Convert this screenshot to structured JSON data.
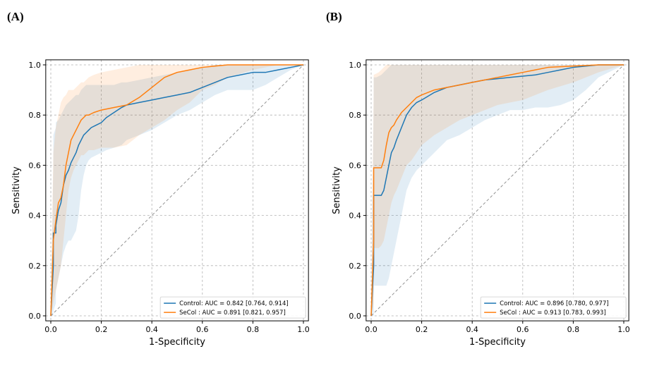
{
  "chart_data": [
    {
      "panel_label": "(A)",
      "type": "line",
      "xlabel": "1-Specificity",
      "ylabel": "Sensitivity",
      "xlim": [
        0,
        1
      ],
      "ylim": [
        0,
        1
      ],
      "xticks": [
        "0.0",
        "0.2",
        "0.4",
        "0.6",
        "0.8",
        "1.0"
      ],
      "yticks": [
        "0.0",
        "0.2",
        "0.4",
        "0.6",
        "0.8",
        "1.0"
      ],
      "grid": true,
      "legend_position": "lower-right",
      "diagonal_reference": true,
      "series": [
        {
          "name": "Control: AUC = 0.842 [0.764, 0.914]",
          "color": "#1f77b4",
          "x": [
            0,
            0.01,
            0.01,
            0.02,
            0.02,
            0.03,
            0.04,
            0.05,
            0.06,
            0.07,
            0.08,
            0.09,
            0.1,
            0.11,
            0.12,
            0.13,
            0.14,
            0.15,
            0.16,
            0.18,
            0.2,
            0.22,
            0.25,
            0.28,
            0.3,
            0.35,
            0.4,
            0.45,
            0.5,
            0.55,
            0.6,
            0.65,
            0.7,
            0.75,
            0.8,
            0.85,
            0.9,
            0.95,
            1.0
          ],
          "y": [
            0,
            0.2,
            0.33,
            0.33,
            0.36,
            0.42,
            0.45,
            0.52,
            0.56,
            0.58,
            0.61,
            0.63,
            0.65,
            0.68,
            0.7,
            0.72,
            0.73,
            0.74,
            0.75,
            0.76,
            0.77,
            0.79,
            0.81,
            0.83,
            0.84,
            0.85,
            0.86,
            0.87,
            0.88,
            0.89,
            0.91,
            0.93,
            0.95,
            0.96,
            0.97,
            0.97,
            0.98,
            0.99,
            1.0
          ],
          "ci_lower": [
            0,
            0,
            0.02,
            0.05,
            0.1,
            0.15,
            0.2,
            0.25,
            0.28,
            0.3,
            0.3,
            0.32,
            0.34,
            0.4,
            0.5,
            0.56,
            0.6,
            0.62,
            0.63,
            0.64,
            0.65,
            0.66,
            0.67,
            0.68,
            0.7,
            0.72,
            0.74,
            0.77,
            0.8,
            0.82,
            0.85,
            0.88,
            0.9,
            0.9,
            0.9,
            0.92,
            0.95,
            0.98,
            1.0
          ],
          "ci_upper": [
            0,
            0.6,
            0.72,
            0.75,
            0.77,
            0.78,
            0.8,
            0.82,
            0.84,
            0.85,
            0.86,
            0.87,
            0.88,
            0.88,
            0.9,
            0.91,
            0.92,
            0.92,
            0.92,
            0.92,
            0.92,
            0.92,
            0.92,
            0.93,
            0.93,
            0.94,
            0.95,
            0.96,
            0.97,
            0.98,
            0.99,
            1.0,
            1.0,
            1.0,
            1.0,
            1.0,
            1.0,
            1.0,
            1.0
          ]
        },
        {
          "name": "SeCol  : AUC = 0.891 [0.821, 0.957]",
          "color": "#ff7f0e",
          "x": [
            0,
            0.01,
            0.02,
            0.03,
            0.04,
            0.05,
            0.06,
            0.07,
            0.08,
            0.09,
            0.1,
            0.11,
            0.12,
            0.13,
            0.14,
            0.15,
            0.17,
            0.2,
            0.25,
            0.3,
            0.35,
            0.4,
            0.45,
            0.5,
            0.55,
            0.6,
            0.65,
            0.7,
            0.8,
            0.9,
            1.0
          ],
          "y": [
            0,
            0.3,
            0.38,
            0.45,
            0.47,
            0.52,
            0.6,
            0.65,
            0.7,
            0.72,
            0.74,
            0.76,
            0.78,
            0.79,
            0.8,
            0.8,
            0.81,
            0.82,
            0.83,
            0.84,
            0.87,
            0.91,
            0.95,
            0.97,
            0.98,
            0.99,
            0.995,
            1.0,
            1.0,
            1.0,
            1.0
          ],
          "ci_lower": [
            0,
            0.05,
            0.1,
            0.15,
            0.2,
            0.3,
            0.4,
            0.5,
            0.55,
            0.58,
            0.6,
            0.62,
            0.64,
            0.64,
            0.65,
            0.66,
            0.66,
            0.67,
            0.67,
            0.68,
            0.72,
            0.75,
            0.78,
            0.82,
            0.85,
            0.9,
            0.92,
            0.95,
            0.98,
            1.0,
            1.0
          ],
          "ci_upper": [
            0,
            0.65,
            0.75,
            0.8,
            0.85,
            0.87,
            0.88,
            0.9,
            0.9,
            0.9,
            0.91,
            0.92,
            0.93,
            0.93,
            0.94,
            0.95,
            0.96,
            0.97,
            0.98,
            0.99,
            1.0,
            1.0,
            1.0,
            1.0,
            1.0,
            1.0,
            1.0,
            1.0,
            1.0,
            1.0,
            1.0
          ]
        }
      ]
    },
    {
      "panel_label": "(B)",
      "type": "line",
      "xlabel": "1-Specificity",
      "ylabel": "Sensitivity",
      "xlim": [
        0,
        1
      ],
      "ylim": [
        0,
        1
      ],
      "xticks": [
        "0.0",
        "0.2",
        "0.4",
        "0.6",
        "0.8",
        "1.0"
      ],
      "yticks": [
        "0.0",
        "0.2",
        "0.4",
        "0.6",
        "0.8",
        "1.0"
      ],
      "grid": true,
      "legend_position": "lower-right",
      "diagonal_reference": true,
      "series": [
        {
          "name": "Control: AUC = 0.896 [0.780, 0.977]",
          "color": "#1f77b4",
          "x": [
            0,
            0.01,
            0.01,
            0.02,
            0.04,
            0.05,
            0.06,
            0.07,
            0.08,
            0.09,
            0.1,
            0.12,
            0.14,
            0.16,
            0.18,
            0.2,
            0.25,
            0.3,
            0.35,
            0.4,
            0.45,
            0.5,
            0.55,
            0.6,
            0.65,
            0.7,
            0.75,
            0.8,
            0.85,
            0.9,
            1.0
          ],
          "y": [
            0,
            0.2,
            0.48,
            0.48,
            0.48,
            0.5,
            0.55,
            0.6,
            0.65,
            0.67,
            0.7,
            0.75,
            0.8,
            0.83,
            0.85,
            0.86,
            0.89,
            0.91,
            0.92,
            0.93,
            0.94,
            0.945,
            0.95,
            0.955,
            0.96,
            0.97,
            0.98,
            0.99,
            0.995,
            1.0,
            1.0
          ],
          "ci_lower": [
            0,
            0,
            0.12,
            0.12,
            0.12,
            0.12,
            0.12,
            0.15,
            0.2,
            0.25,
            0.3,
            0.4,
            0.5,
            0.55,
            0.58,
            0.6,
            0.65,
            0.7,
            0.72,
            0.75,
            0.78,
            0.8,
            0.82,
            0.82,
            0.83,
            0.83,
            0.84,
            0.86,
            0.9,
            0.95,
            1.0
          ],
          "ci_upper": [
            0,
            0.85,
            0.95,
            0.95,
            0.96,
            0.97,
            0.98,
            0.99,
            1.0,
            1.0,
            1.0,
            1.0,
            1.0,
            1.0,
            1.0,
            1.0,
            1.0,
            1.0,
            1.0,
            1.0,
            1.0,
            1.0,
            1.0,
            1.0,
            1.0,
            1.0,
            1.0,
            1.0,
            1.0,
            1.0,
            1.0
          ]
        },
        {
          "name": "SeCol  : AUC = 0.913 [0.783, 0.993]",
          "color": "#ff7f0e",
          "x": [
            0,
            0.01,
            0.01,
            0.03,
            0.04,
            0.05,
            0.06,
            0.07,
            0.08,
            0.09,
            0.1,
            0.12,
            0.14,
            0.16,
            0.18,
            0.2,
            0.25,
            0.3,
            0.35,
            0.4,
            0.45,
            0.5,
            0.55,
            0.6,
            0.65,
            0.7,
            0.8,
            0.9,
            1.0
          ],
          "y": [
            0,
            0.3,
            0.59,
            0.59,
            0.59,
            0.62,
            0.68,
            0.73,
            0.75,
            0.76,
            0.78,
            0.81,
            0.83,
            0.85,
            0.87,
            0.88,
            0.9,
            0.91,
            0.92,
            0.93,
            0.94,
            0.95,
            0.96,
            0.97,
            0.98,
            0.99,
            0.995,
            1.0,
            1.0
          ],
          "ci_lower": [
            0,
            0.05,
            0.27,
            0.27,
            0.28,
            0.3,
            0.35,
            0.4,
            0.45,
            0.48,
            0.5,
            0.55,
            0.6,
            0.62,
            0.65,
            0.68,
            0.72,
            0.75,
            0.78,
            0.8,
            0.82,
            0.84,
            0.85,
            0.86,
            0.88,
            0.9,
            0.93,
            0.97,
            1.0
          ],
          "ci_upper": [
            0,
            0.9,
            0.96,
            0.97,
            0.98,
            0.99,
            1.0,
            1.0,
            1.0,
            1.0,
            1.0,
            1.0,
            1.0,
            1.0,
            1.0,
            1.0,
            1.0,
            1.0,
            1.0,
            1.0,
            1.0,
            1.0,
            1.0,
            1.0,
            1.0,
            1.0,
            1.0,
            1.0,
            1.0
          ]
        }
      ]
    }
  ]
}
